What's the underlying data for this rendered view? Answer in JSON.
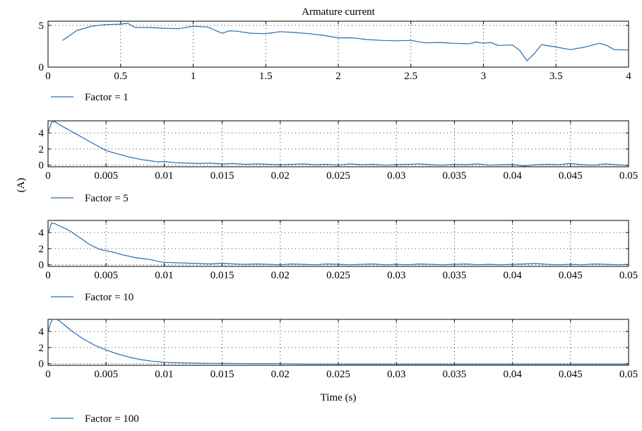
{
  "figure": {
    "ylabel": "(A)",
    "line_color": "#2b6cb0"
  },
  "chart_data": [
    {
      "type": "line",
      "title": "Armature current",
      "xlabel": "",
      "ylabel": "",
      "xlim": [
        0,
        4
      ],
      "ylim": [
        0,
        5.5
      ],
      "grid": "dotted",
      "x_ticks": [
        0,
        0.5,
        1,
        1.5,
        2,
        2.5,
        3,
        3.5,
        4
      ],
      "x_tick_labels": [
        "0",
        "0.5",
        "1",
        "1.5",
        "2",
        "2.5",
        "3",
        "3.5",
        "4"
      ],
      "y_ticks": [
        0,
        5
      ],
      "y_tick_labels": [
        "0",
        "5"
      ],
      "legend_position": "bottom-left",
      "series": [
        {
          "name": "Factor = 1",
          "color": "#2b6cb0",
          "x": [
            0.1,
            0.2,
            0.3,
            0.4,
            0.5,
            0.55,
            0.6,
            0.7,
            0.8,
            0.9,
            1.0,
            1.1,
            1.2,
            1.25,
            1.3,
            1.4,
            1.5,
            1.6,
            1.7,
            1.8,
            1.9,
            2.0,
            2.1,
            2.2,
            2.3,
            2.4,
            2.5,
            2.6,
            2.7,
            2.8,
            2.9,
            2.95,
            3.0,
            3.05,
            3.1,
            3.2,
            3.25,
            3.3,
            3.35,
            3.4,
            3.5,
            3.6,
            3.7,
            3.8,
            3.85,
            3.9,
            4.0
          ],
          "y": [
            3.2,
            4.4,
            4.9,
            5.1,
            5.15,
            5.25,
            4.75,
            4.75,
            4.65,
            4.6,
            4.9,
            4.8,
            4.05,
            4.35,
            4.3,
            4.05,
            4.0,
            4.25,
            4.15,
            4.0,
            3.8,
            3.5,
            3.5,
            3.3,
            3.2,
            3.15,
            3.2,
            2.9,
            2.95,
            2.85,
            2.8,
            3.0,
            2.85,
            2.95,
            2.6,
            2.65,
            2.0,
            0.75,
            1.6,
            2.7,
            2.4,
            2.1,
            2.4,
            2.85,
            2.6,
            2.1,
            2.05
          ]
        }
      ]
    },
    {
      "type": "line",
      "title": "",
      "xlabel": "",
      "ylabel": "",
      "xlim": [
        0,
        0.05
      ],
      "ylim": [
        -0.2,
        5.5
      ],
      "grid": "dotted",
      "x_ticks": [
        0,
        0.005,
        0.01,
        0.015,
        0.02,
        0.025,
        0.03,
        0.035,
        0.04,
        0.045,
        0.05
      ],
      "x_tick_labels": [
        "0",
        "0.005",
        "0.01",
        "0.015",
        "0.02",
        "0.025",
        "0.03",
        "0.035",
        "0.04",
        "0.045",
        "0.05"
      ],
      "y_ticks": [
        0,
        2,
        4
      ],
      "y_tick_labels": [
        "0",
        "2",
        "4"
      ],
      "legend_position": "bottom-left",
      "series": [
        {
          "name": "Factor = 5",
          "color": "#2b6cb0",
          "x": [
            0,
            0.0003,
            0.0006,
            0.001,
            0.0015,
            0.002,
            0.0025,
            0.003,
            0.0035,
            0.004,
            0.0045,
            0.005,
            0.0055,
            0.006,
            0.0065,
            0.007,
            0.0075,
            0.008,
            0.0085,
            0.009,
            0.0095,
            0.01,
            0.011,
            0.012,
            0.013,
            0.014,
            0.015,
            0.016,
            0.017,
            0.018,
            0.019,
            0.02,
            0.021,
            0.022,
            0.023,
            0.024,
            0.025,
            0.026,
            0.027,
            0.028,
            0.029,
            0.03,
            0.031,
            0.032,
            0.033,
            0.034,
            0.035,
            0.036,
            0.037,
            0.038,
            0.039,
            0.04,
            0.041,
            0.042,
            0.043,
            0.044,
            0.045,
            0.046,
            0.047,
            0.048,
            0.049,
            0.05
          ],
          "y": [
            4.0,
            5.3,
            5.4,
            5.0,
            4.6,
            4.2,
            3.8,
            3.4,
            3.0,
            2.6,
            2.2,
            1.8,
            1.6,
            1.4,
            1.2,
            1.0,
            0.85,
            0.7,
            0.6,
            0.5,
            0.4,
            0.45,
            0.3,
            0.25,
            0.2,
            0.25,
            0.15,
            0.2,
            0.1,
            0.15,
            0.1,
            0.05,
            0.1,
            0.15,
            0.05,
            0.1,
            0.0,
            0.15,
            0.05,
            0.1,
            0.0,
            0.05,
            0.1,
            0.15,
            0.05,
            0.0,
            0.1,
            0.05,
            0.15,
            0.0,
            0.05,
            0.1,
            -0.1,
            0.05,
            0.1,
            0.05,
            0.2,
            0.05,
            0.0,
            0.15,
            0.05,
            -0.05
          ]
        }
      ]
    },
    {
      "type": "line",
      "title": "",
      "xlabel": "",
      "ylabel": "",
      "xlim": [
        0,
        0.05
      ],
      "ylim": [
        -0.2,
        5.5
      ],
      "grid": "dotted",
      "x_ticks": [
        0,
        0.005,
        0.01,
        0.015,
        0.02,
        0.025,
        0.03,
        0.035,
        0.04,
        0.045,
        0.05
      ],
      "x_tick_labels": [
        "0",
        "0.005",
        "0.01",
        "0.015",
        "0.02",
        "0.025",
        "0.03",
        "0.035",
        "0.04",
        "0.045",
        "0.05"
      ],
      "y_ticks": [
        0,
        2,
        4
      ],
      "y_tick_labels": [
        "0",
        "2",
        "4"
      ],
      "legend_position": "bottom-left",
      "series": [
        {
          "name": "Factor = 10",
          "color": "#2b6cb0",
          "x": [
            0,
            0.0003,
            0.0006,
            0.001,
            0.0015,
            0.002,
            0.0025,
            0.003,
            0.0035,
            0.004,
            0.0045,
            0.005,
            0.0055,
            0.006,
            0.0065,
            0.007,
            0.0075,
            0.008,
            0.0085,
            0.009,
            0.0095,
            0.01,
            0.011,
            0.012,
            0.013,
            0.014,
            0.015,
            0.016,
            0.017,
            0.018,
            0.019,
            0.02,
            0.021,
            0.022,
            0.023,
            0.024,
            0.025,
            0.026,
            0.027,
            0.028,
            0.029,
            0.03,
            0.031,
            0.032,
            0.033,
            0.034,
            0.035,
            0.036,
            0.037,
            0.038,
            0.039,
            0.04,
            0.041,
            0.042,
            0.043,
            0.044,
            0.045,
            0.046,
            0.047,
            0.048,
            0.049,
            0.05
          ],
          "y": [
            3.8,
            5.2,
            5.1,
            4.8,
            4.5,
            4.1,
            3.6,
            3.1,
            2.6,
            2.2,
            1.9,
            1.75,
            1.6,
            1.4,
            1.2,
            1.05,
            0.9,
            0.8,
            0.7,
            0.6,
            0.4,
            0.3,
            0.25,
            0.2,
            0.15,
            0.1,
            0.2,
            0.1,
            0.05,
            0.1,
            0.05,
            0.0,
            0.1,
            0.05,
            0.0,
            0.1,
            0.05,
            0.0,
            0.05,
            0.1,
            0.0,
            0.05,
            0.0,
            0.1,
            0.05,
            0.0,
            0.05,
            0.1,
            0.0,
            0.05,
            0.0,
            0.05,
            0.1,
            0.15,
            0.05,
            0.0,
            0.05,
            0.0,
            0.1,
            0.05,
            0.0,
            0.05
          ]
        }
      ]
    },
    {
      "type": "line",
      "title": "",
      "xlabel": "Time (s)",
      "ylabel": "",
      "xlim": [
        0,
        0.05
      ],
      "ylim": [
        -0.2,
        5.5
      ],
      "grid": "dotted",
      "x_ticks": [
        0,
        0.005,
        0.01,
        0.015,
        0.02,
        0.025,
        0.03,
        0.035,
        0.04,
        0.045,
        0.05
      ],
      "x_tick_labels": [
        "0",
        "0.005",
        "0.01",
        "0.015",
        "0.02",
        "0.025",
        "0.03",
        "0.035",
        "0.04",
        "0.045",
        "0.05"
      ],
      "y_ticks": [
        0,
        2,
        4
      ],
      "y_tick_labels": [
        "0",
        "2",
        "4"
      ],
      "legend_position": "bottom-left",
      "series": [
        {
          "name": "Factor = 100",
          "color": "#2b6cb0",
          "x": [
            0,
            0.0002,
            0.0004,
            0.0006,
            0.001,
            0.0015,
            0.002,
            0.0025,
            0.003,
            0.0035,
            0.004,
            0.005,
            0.006,
            0.007,
            0.008,
            0.009,
            0.01,
            0.011,
            0.012,
            0.013,
            0.014,
            0.015,
            0.016,
            0.018,
            0.02,
            0.022,
            0.024,
            0.026,
            0.03,
            0.035,
            0.04,
            0.045,
            0.05
          ],
          "y": [
            3.8,
            5.0,
            5.5,
            5.6,
            5.3,
            4.7,
            4.1,
            3.6,
            3.1,
            2.7,
            2.3,
            1.7,
            1.2,
            0.8,
            0.5,
            0.3,
            0.18,
            0.12,
            0.08,
            0.06,
            0.04,
            0.03,
            0.02,
            0.01,
            0.0,
            -0.05,
            -0.05,
            -0.06,
            -0.06,
            -0.06,
            -0.06,
            -0.06,
            -0.06
          ]
        }
      ]
    }
  ]
}
